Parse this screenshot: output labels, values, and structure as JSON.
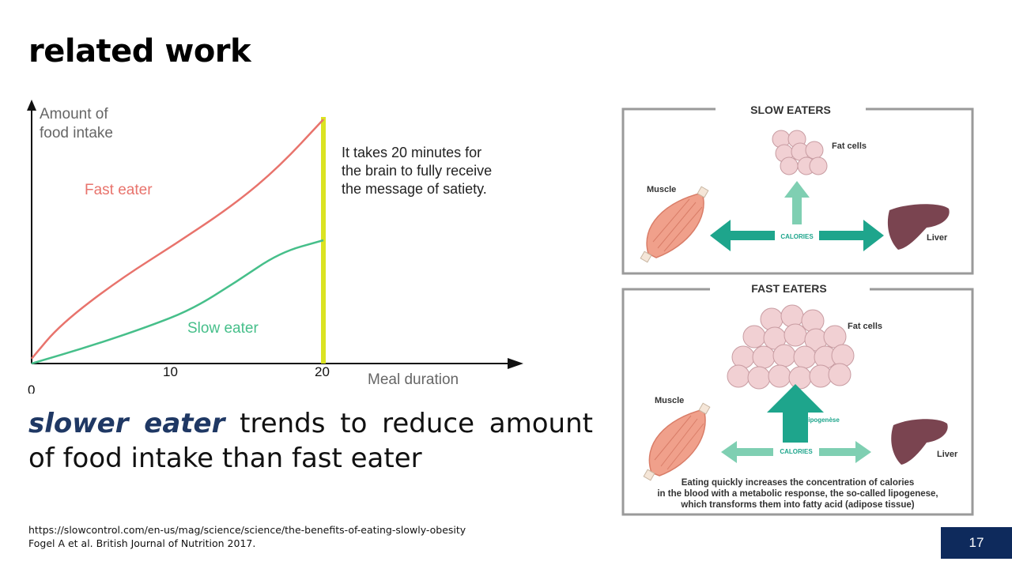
{
  "slide": {
    "title": "related work",
    "summary_emphasis": "slower eater",
    "summary_rest": " trends to reduce amount of food intake than fast eater",
    "references": [
      "https://slowcontrol.com/en-us/mag/science/science/the-benefits-of-eating-slowly-obesity",
      "Fogel A et al. British Journal of Nutrition 2017."
    ],
    "page_number": "17",
    "colors": {
      "title": "#000000",
      "emphasis": "#1f3864",
      "page_badge": "#0e2a5c"
    }
  },
  "chart_data": {
    "type": "line",
    "ylabel": [
      "Amount of",
      "food intake"
    ],
    "xlabel": "Meal duration",
    "origin_label": "0",
    "x_ticks": [
      "10",
      "20"
    ],
    "xlim": [
      0,
      20
    ],
    "ylim": [
      0,
      10
    ],
    "series": [
      {
        "name": "Fast eater",
        "color": "#e8736c",
        "x": [
          0,
          2,
          6,
          10,
          14,
          17,
          20
        ],
        "y": [
          0.2,
          1.6,
          3.4,
          4.9,
          6.5,
          8.0,
          9.9
        ]
      },
      {
        "name": "Slow eater",
        "color": "#46bf8a",
        "x": [
          0,
          4,
          8,
          11,
          14,
          17,
          20
        ],
        "y": [
          0,
          0.7,
          1.5,
          2.2,
          3.3,
          4.5,
          5.0
        ]
      }
    ],
    "marker_line": {
      "x": 20,
      "color": "#dbe322"
    },
    "annotation": [
      "It takes 20 minutes for",
      "the brain to fully receive",
      "the message of satiety."
    ]
  },
  "diagram": {
    "slow_panel": {
      "title": "SLOW EATERS",
      "fat_label": "Fat cells",
      "muscle_label": "Muscle",
      "liver_label": "Liver",
      "calories_label": "CALORIES"
    },
    "fast_panel": {
      "title": "FAST EATERS",
      "fat_label": "Fat cells",
      "muscle_label": "Muscle",
      "liver_label": "Liver",
      "calories_label": "CALORIES",
      "lipogenese_label": "lipogenèse",
      "caption": [
        "Eating quickly increases the concentration of calories",
        "in the blood with a metabolic response, the so-called lipogenese,",
        "which transforms them into fatty acid (adipose tissue)"
      ]
    },
    "colors": {
      "arrow_dark": "#1ea58c",
      "arrow_light": "#7fcfb2",
      "muscle": "#f0a08b",
      "liver": "#7a4450",
      "fat_cell": "#f1d0d3",
      "frame": "#9a9a9a"
    }
  }
}
